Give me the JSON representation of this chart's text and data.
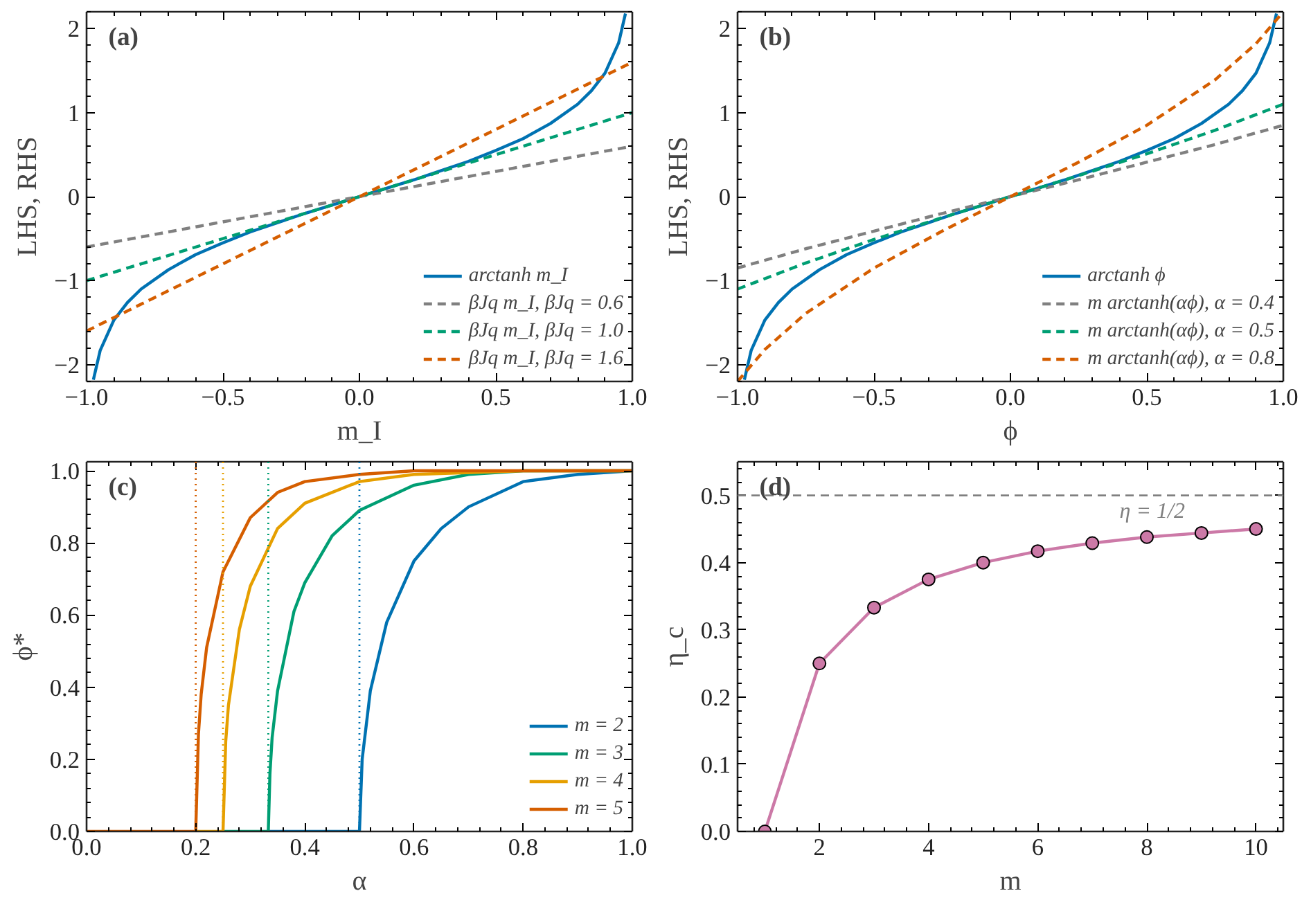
{
  "chart_data": [
    {
      "type": "line",
      "annotations": [
        "(a)"
      ],
      "xlabel": "m_I",
      "ylabel": "LHS, RHS",
      "xlim": [
        -1,
        1
      ],
      "ylim": [
        -2.2,
        2.2
      ],
      "xticks": [
        {
          "value": -1,
          "label": "−1.0"
        },
        {
          "value": -0.5,
          "label": "−0.5"
        },
        {
          "value": 0,
          "label": "0.0"
        },
        {
          "value": 0.5,
          "label": "0.5"
        },
        {
          "value": 1,
          "label": "1.0"
        }
      ],
      "yticks": [
        {
          "value": -2,
          "label": "−2"
        },
        {
          "value": -1,
          "label": "−1"
        },
        0,
        1,
        2
      ],
      "legend": "bottom right",
      "grid": false,
      "series": [
        {
          "name": "arctanh m_I",
          "color": "#0072b2",
          "line_style": "solid",
          "x": [
            -0.975,
            -0.95,
            -0.9,
            -0.85,
            -0.8,
            -0.7,
            -0.6,
            -0.5,
            -0.4,
            -0.3,
            -0.2,
            -0.1,
            0,
            0.1,
            0.2,
            0.3,
            0.4,
            0.5,
            0.6,
            0.7,
            0.8,
            0.85,
            0.9,
            0.95,
            0.975
          ],
          "values": [
            -2.18,
            -1.83,
            -1.47,
            -1.26,
            -1.1,
            -0.87,
            -0.69,
            -0.55,
            -0.42,
            -0.31,
            -0.2,
            -0.1,
            0,
            0.1,
            0.2,
            0.31,
            0.42,
            0.55,
            0.69,
            0.87,
            1.1,
            1.26,
            1.47,
            1.83,
            2.18
          ]
        },
        {
          "name": "βJq m_I, βJq = 0.6",
          "color": "#808080",
          "line_style": "dashed",
          "x": [
            -1,
            1
          ],
          "values": [
            -0.6,
            0.6
          ]
        },
        {
          "name": "βJq m_I, βJq = 1.0",
          "color": "#009e73",
          "line_style": "dashed",
          "x": [
            -1,
            1
          ],
          "values": [
            -1.0,
            1.0
          ]
        },
        {
          "name": "βJq m_I, βJq = 1.6",
          "color": "#d55e00",
          "line_style": "dashed",
          "x": [
            -1,
            1
          ],
          "values": [
            -1.6,
            1.6
          ]
        }
      ]
    },
    {
      "type": "line",
      "annotations": [
        "(b)"
      ],
      "xlabel": "ϕ",
      "ylabel": "LHS, RHS",
      "xlim": [
        -1,
        1
      ],
      "ylim": [
        -2.2,
        2.2
      ],
      "xticks": [
        {
          "value": -1,
          "label": "−1.0"
        },
        {
          "value": -0.5,
          "label": "−0.5"
        },
        {
          "value": 0,
          "label": "0.0"
        },
        {
          "value": 0.5,
          "label": "0.5"
        },
        {
          "value": 1,
          "label": "1.0"
        }
      ],
      "yticks": [
        {
          "value": -2,
          "label": "−2"
        },
        {
          "value": -1,
          "label": "−1"
        },
        0,
        1,
        2
      ],
      "legend": "bottom right",
      "grid": false,
      "series": [
        {
          "name": "arctanh ϕ",
          "color": "#0072b2",
          "line_style": "solid",
          "x": [
            -0.975,
            -0.95,
            -0.9,
            -0.85,
            -0.8,
            -0.7,
            -0.6,
            -0.5,
            -0.4,
            -0.3,
            -0.2,
            -0.1,
            0,
            0.1,
            0.2,
            0.3,
            0.4,
            0.5,
            0.6,
            0.7,
            0.8,
            0.85,
            0.9,
            0.95,
            0.975
          ],
          "values": [
            -2.18,
            -1.83,
            -1.47,
            -1.26,
            -1.1,
            -0.87,
            -0.69,
            -0.55,
            -0.42,
            -0.31,
            -0.2,
            -0.1,
            0,
            0.1,
            0.2,
            0.31,
            0.42,
            0.55,
            0.69,
            0.87,
            1.1,
            1.26,
            1.47,
            1.83,
            2.18
          ]
        },
        {
          "name": "m arctanh(αϕ), α = 0.4",
          "color": "#808080",
          "line_style": "dashed",
          "x": [
            -1,
            -0.75,
            -0.5,
            -0.25,
            0,
            0.25,
            0.5,
            0.75,
            1
          ],
          "values": [
            -0.85,
            -0.62,
            -0.41,
            -0.2,
            0,
            0.2,
            0.41,
            0.62,
            0.85
          ]
        },
        {
          "name": "m arctanh(αϕ), α = 0.5",
          "color": "#009e73",
          "line_style": "dashed",
          "x": [
            -1,
            -0.75,
            -0.5,
            -0.25,
            0,
            0.25,
            0.5,
            0.75,
            1
          ],
          "values": [
            -1.1,
            -0.79,
            -0.51,
            -0.25,
            0,
            0.25,
            0.51,
            0.79,
            1.1
          ]
        },
        {
          "name": "m arctanh(αϕ), α = 0.8",
          "color": "#d55e00",
          "line_style": "dashed",
          "x": [
            -1,
            -0.9,
            -0.75,
            -0.5,
            -0.25,
            0,
            0.25,
            0.5,
            0.75,
            0.9,
            1
          ],
          "values": [
            -2.2,
            -1.82,
            -1.39,
            -0.85,
            -0.41,
            0,
            0.41,
            0.85,
            1.39,
            1.82,
            2.2
          ]
        }
      ]
    },
    {
      "type": "line",
      "annotations": [
        "(c)"
      ],
      "xlabel": "α",
      "ylabel": "ϕ*",
      "xlim": [
        0,
        1
      ],
      "ylim": [
        0,
        1.025
      ],
      "xticks": [
        {
          "value": 0,
          "label": "0.0"
        },
        0.2,
        0.4,
        0.6,
        0.8,
        {
          "value": 1,
          "label": "1.0"
        }
      ],
      "yticks": [
        {
          "value": 0,
          "label": "0.0"
        },
        0.2,
        0.4,
        0.6,
        0.8,
        {
          "value": 1,
          "label": "1.0"
        }
      ],
      "legend": "bottom right",
      "grid": false,
      "ref_lines": [
        {
          "axis": "x",
          "value": 0.2,
          "color": "#d55e00",
          "line_style": "dotted"
        },
        {
          "axis": "x",
          "value": 0.25,
          "color": "#e69f00",
          "line_style": "dotted"
        },
        {
          "axis": "x",
          "value": 0.333,
          "color": "#009e73",
          "line_style": "dotted"
        },
        {
          "axis": "x",
          "value": 0.5,
          "color": "#0072b2",
          "line_style": "dotted"
        }
      ],
      "series": [
        {
          "name": "m = 2",
          "color": "#0072b2",
          "line_style": "solid",
          "x": [
            0.333,
            0.5,
            0.505,
            0.52,
            0.55,
            0.6,
            0.65,
            0.7,
            0.8,
            0.9,
            1.0
          ],
          "values": [
            0,
            0,
            0.2,
            0.39,
            0.58,
            0.75,
            0.84,
            0.9,
            0.97,
            0.99,
            1.0
          ]
        },
        {
          "name": "m = 3",
          "color": "#009e73",
          "line_style": "solid",
          "x": [
            0.25,
            0.333,
            0.336,
            0.34,
            0.35,
            0.38,
            0.4,
            0.45,
            0.5,
            0.6,
            0.7,
            0.8,
            1.0
          ],
          "values": [
            0,
            0,
            0.16,
            0.26,
            0.39,
            0.61,
            0.69,
            0.82,
            0.89,
            0.96,
            0.99,
            1.0,
            1.0
          ]
        },
        {
          "name": "m = 4",
          "color": "#e69f00",
          "line_style": "solid",
          "x": [
            0.2,
            0.25,
            0.255,
            0.26,
            0.28,
            0.3,
            0.35,
            0.4,
            0.5,
            0.6,
            0.8,
            1.0
          ],
          "values": [
            0,
            0,
            0.25,
            0.35,
            0.56,
            0.68,
            0.84,
            0.91,
            0.97,
            0.99,
            1.0,
            1.0
          ]
        },
        {
          "name": "m = 5",
          "color": "#d55e00",
          "line_style": "solid",
          "x": [
            0,
            0.2,
            0.205,
            0.21,
            0.22,
            0.25,
            0.3,
            0.35,
            0.4,
            0.5,
            0.6,
            0.8,
            1.0
          ],
          "values": [
            0,
            0,
            0.27,
            0.38,
            0.51,
            0.72,
            0.87,
            0.94,
            0.97,
            0.99,
            1.0,
            1.0,
            1.0
          ]
        }
      ]
    },
    {
      "type": "line",
      "annotations": [
        "(d)"
      ],
      "xlabel": "m",
      "ylabel": "η_c",
      "xlim": [
        0.5,
        10.5
      ],
      "ylim": [
        0,
        0.55
      ],
      "xticks": [
        2,
        4,
        6,
        8,
        10
      ],
      "yticks": [
        {
          "value": 0,
          "label": "0.0"
        },
        0.1,
        0.2,
        0.3,
        0.4,
        0.5
      ],
      "grid": false,
      "marker": "circle",
      "ref_lines": [
        {
          "axis": "y",
          "value": 0.5,
          "label": "η = 1/2",
          "color": "#808080",
          "line_style": "dashed"
        }
      ],
      "series": [
        {
          "color": "#cc79a7",
          "line_style": "solid",
          "x": [
            1,
            2,
            3,
            4,
            5,
            6,
            7,
            8,
            9,
            10
          ],
          "values": [
            0,
            0.25,
            0.333,
            0.375,
            0.4,
            0.417,
            0.429,
            0.438,
            0.444,
            0.45
          ]
        }
      ]
    }
  ]
}
